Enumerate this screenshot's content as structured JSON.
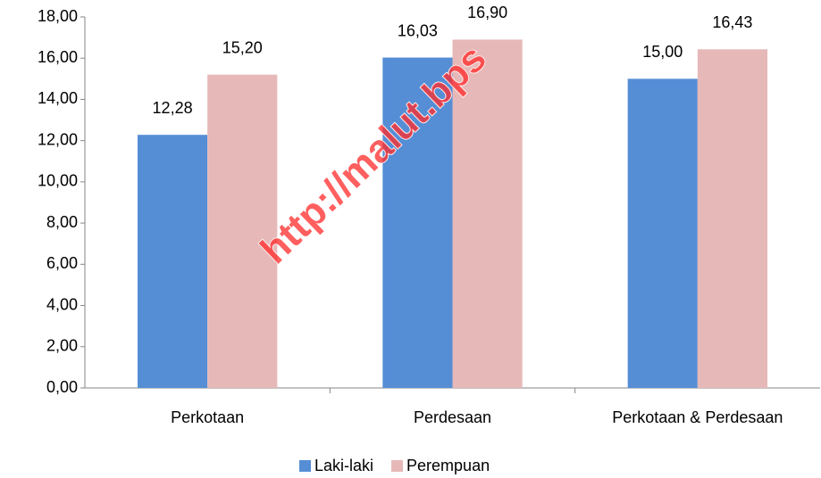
{
  "chart_data": {
    "type": "bar",
    "categories": [
      "Perkotaan",
      "Perdesaan",
      "Perkotaan & Perdesaan"
    ],
    "series": [
      {
        "name": "Laki-laki",
        "color": "#558ed5",
        "values": [
          12.28,
          16.03,
          15.0
        ],
        "value_labels": [
          "12,28",
          "16,03",
          "15,00"
        ]
      },
      {
        "name": "Perempuan",
        "color": "#e6b9b8",
        "values": [
          15.2,
          16.9,
          16.43
        ],
        "value_labels": [
          "15,20",
          "16,90",
          "16,43"
        ]
      }
    ],
    "ylim": [
      0,
      18
    ],
    "yticks": [
      {
        "value": 0,
        "label": "0,00"
      },
      {
        "value": 2,
        "label": "2,00"
      },
      {
        "value": 4,
        "label": "4,00"
      },
      {
        "value": 6,
        "label": "6,00"
      },
      {
        "value": 8,
        "label": "8,00"
      },
      {
        "value": 10,
        "label": "10,00"
      },
      {
        "value": 12,
        "label": "12,00"
      },
      {
        "value": 14,
        "label": "14,00"
      },
      {
        "value": 16,
        "label": "16,00"
      },
      {
        "value": 18,
        "label": "18,00"
      }
    ],
    "grid": false,
    "legend": "bottom",
    "watermark": "http://malut.bps"
  }
}
